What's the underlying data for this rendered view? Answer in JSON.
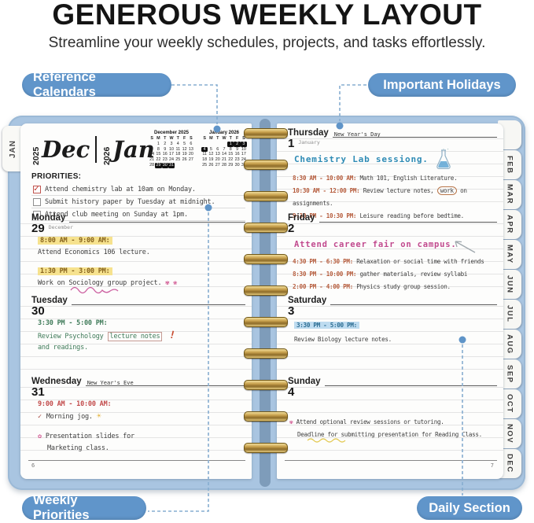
{
  "page_header": {
    "title": "GENEROUS WEEKLY LAYOUT",
    "subtitle": "Streamline your weekly schedules, projects, and tasks effortlessly."
  },
  "callouts": {
    "reference_calendars": "Reference Calendars",
    "important_holidays": "Important Holidays",
    "weekly_priorities": "Weekly Priorities",
    "daily_section": "Daily Section"
  },
  "colors": {
    "callout_pill": "#6095ca",
    "cover_blue": "#a9c5e1",
    "connector": "#86add0",
    "highlight_yellow": "#f6e28e",
    "highlight_blue": "#bedcf0",
    "coil_gold": "#caa34f"
  },
  "planner": {
    "left_tab": "JAN",
    "right_tabs": [
      "FEB",
      "MAR",
      "APR",
      "MAY",
      "JUN",
      "JUL",
      "AUG",
      "SEP",
      "OCT",
      "NOV",
      "DEC"
    ],
    "left_page": {
      "year_left": "2025",
      "month_left": "Dec",
      "year_right": "2026",
      "month_right": "Jan",
      "calendars": [
        {
          "title": "December 2025",
          "dow": [
            "S",
            "M",
            "T",
            "W",
            "T",
            "F",
            "S"
          ],
          "weeks": [
            [
              "",
              "1",
              "2",
              "3",
              "4",
              "5",
              "6"
            ],
            [
              "7",
              "8",
              "9",
              "10",
              "11",
              "12",
              "13"
            ],
            [
              "14",
              "15",
              "16",
              "17",
              "18",
              "19",
              "20"
            ],
            [
              "21",
              "22",
              "23",
              "24",
              "25",
              "26",
              "27"
            ],
            [
              "28",
              "29",
              "30",
              "31",
              "",
              "",
              ""
            ]
          ],
          "highlighted": [
            "29",
            "30",
            "31"
          ]
        },
        {
          "title": "January 2026",
          "dow": [
            "S",
            "M",
            "T",
            "W",
            "T",
            "F",
            "S"
          ],
          "weeks": [
            [
              "",
              "",
              "",
              "",
              "1",
              "2",
              "3"
            ],
            [
              "4",
              "5",
              "6",
              "7",
              "8",
              "9",
              "10"
            ],
            [
              "11",
              "12",
              "13",
              "14",
              "15",
              "16",
              "17"
            ],
            [
              "18",
              "19",
              "20",
              "21",
              "22",
              "23",
              "24"
            ],
            [
              "25",
              "26",
              "27",
              "28",
              "29",
              "30",
              "31"
            ]
          ],
          "highlighted": [
            "1",
            "2",
            "3",
            "4"
          ]
        }
      ],
      "priorities": {
        "label": "PRIORITIES:",
        "items": [
          {
            "checked": true,
            "text": "Attend chemistry lab at 10am on Monday."
          },
          {
            "checked": false,
            "text": "Submit history paper by Tuesday at midnight."
          },
          {
            "checked": false,
            "text": "Attend club meeting on Sunday at 1pm."
          }
        ]
      },
      "days": {
        "monday": {
          "name": "Monday",
          "date": "29",
          "month": "December",
          "holiday": "",
          "time1": "8:00 AM - 9:00 AM:",
          "text1": "Attend Economics 106 lecture.",
          "time2": "1:30 PM - 3:00 PM:",
          "text2": "Work on Sociology group project.",
          "doodles": "✾ ❀"
        },
        "tuesday": {
          "name": "Tuesday",
          "date": "30",
          "holiday": "",
          "time1": "3:30 PM - 5:00 PM:",
          "text1": "Review Psychology",
          "boxed": "lecture notes",
          "exclaim": "!",
          "text2": "and readings."
        },
        "wednesday": {
          "name": "Wednesday",
          "date": "31",
          "holiday": "New Year's Eve",
          "time1": "9:00 AM - 10:00 AM:",
          "check": "✓",
          "text1": "Morning jog.",
          "sun": "☀",
          "star": "✿",
          "text2": "Presentation slides for",
          "text3": "Marketing class."
        }
      },
      "page_number": "6"
    },
    "right_page": {
      "days": {
        "thursday": {
          "name": "Thursday",
          "date": "1",
          "month": "January",
          "holiday": "New Year's Day",
          "headline": "Chemistry Lab sessiong.",
          "time1": "8:30 AM - 10:00 AM:",
          "text1": "Math 101, English Literature.",
          "time2": "10:30 AM - 12:00 PM:",
          "text2a": "Review lecture notes,",
          "circled": "work",
          "text2b": "on assignments.",
          "time3": "9:30 PM - 10:30 PM:",
          "text3": "Leisure reading before bedtime."
        },
        "friday": {
          "name": "Friday",
          "date": "2",
          "holiday": "",
          "headline": "Attend career fair on campus.",
          "time1": "4:30 PM - 6:30 PM:",
          "text1": "Relaxation or social time with friends",
          "time2": "8:30 PM - 10:00 PM:",
          "text2": "gather materials, review syllabi",
          "time3": "2:00 PM - 4:00 PM:",
          "text3": "Physics study group session."
        },
        "saturday": {
          "name": "Saturday",
          "date": "3",
          "holiday": "",
          "time1": "3:30 PM - 5:00 PM:",
          "text1": "Review Biology lecture notes."
        },
        "sunday": {
          "name": "Sunday",
          "date": "4",
          "holiday": "",
          "star": "✾",
          "text1": "Attend optional review sessions or tutoring.",
          "text2": "Deadline for submitting presentation for Reading Class."
        }
      },
      "page_number": "7"
    }
  }
}
